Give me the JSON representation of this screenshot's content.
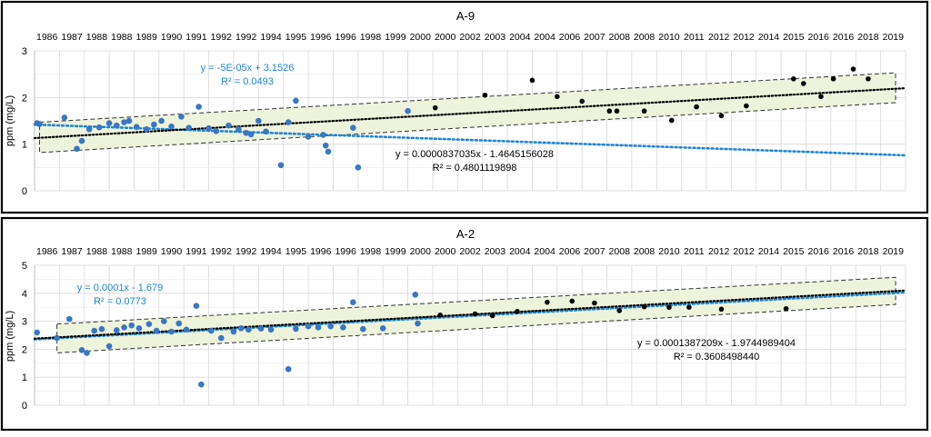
{
  "colors": {
    "blue": "#3a76c3",
    "blue_trend": "#1f86d6",
    "black": "#000000",
    "band_fill": "#eef4dc",
    "grid": "#d9d9d9",
    "frame": "#000000"
  },
  "chart_data": [
    {
      "type": "scatter",
      "title": "A-9",
      "ylabel": "ppm (mg/L)",
      "xlabel": "",
      "ylim": [
        0,
        3
      ],
      "yticks": [
        "0",
        "1",
        "2",
        "3"
      ],
      "x_tick_labels": [
        "1986",
        "1987",
        "1988",
        "1988",
        "1989",
        "1990",
        "1991",
        "1992",
        "1992",
        "1994",
        "1995",
        "1996",
        "1996",
        "1998",
        "1999",
        "2000",
        "2000",
        "2002",
        "2003",
        "2004",
        "2004",
        "2006",
        "2007",
        "2008",
        "2008",
        "2010",
        "2011",
        "2012",
        "2012",
        "2014",
        "2015",
        "2016",
        "2016",
        "2018",
        "2019"
      ],
      "x_domain": [
        0,
        35
      ],
      "grid": true,
      "series": [
        {
          "name": "",
          "color": "#3a76c3",
          "points": [
            [
              0.1,
              1.45
            ],
            [
              0.2,
              1.43
            ],
            [
              1.2,
              1.57
            ],
            [
              1.7,
              0.9
            ],
            [
              1.9,
              1.07
            ],
            [
              2.2,
              1.32
            ],
            [
              2.6,
              1.36
            ],
            [
              3.0,
              1.45
            ],
            [
              3.3,
              1.4
            ],
            [
              3.6,
              1.47
            ],
            [
              3.8,
              1.5
            ],
            [
              4.1,
              1.37
            ],
            [
              4.5,
              1.32
            ],
            [
              4.8,
              1.42
            ],
            [
              5.1,
              1.5
            ],
            [
              5.5,
              1.38
            ],
            [
              5.9,
              1.59
            ],
            [
              6.2,
              1.35
            ],
            [
              6.6,
              1.8
            ],
            [
              7.0,
              1.34
            ],
            [
              7.3,
              1.28
            ],
            [
              7.8,
              1.4
            ],
            [
              8.2,
              1.32
            ],
            [
              8.5,
              1.24
            ],
            [
              8.7,
              1.21
            ],
            [
              9.0,
              1.5
            ],
            [
              9.3,
              1.27
            ],
            [
              9.9,
              0.55
            ],
            [
              10.2,
              1.47
            ],
            [
              10.5,
              1.93
            ],
            [
              11.0,
              1.16
            ],
            [
              11.6,
              1.2
            ],
            [
              11.7,
              0.97
            ],
            [
              11.8,
              0.84
            ],
            [
              12.8,
              1.35
            ],
            [
              13.0,
              0.5
            ],
            [
              15.0,
              1.71
            ]
          ]
        },
        {
          "name": "",
          "color": "#000000",
          "points": [
            [
              16.1,
              1.78
            ],
            [
              18.1,
              2.05
            ],
            [
              20.0,
              2.37
            ],
            [
              21.0,
              2.02
            ],
            [
              22.0,
              1.92
            ],
            [
              23.1,
              1.71
            ],
            [
              23.4,
              1.71
            ],
            [
              24.5,
              1.71
            ],
            [
              25.6,
              1.51
            ],
            [
              26.6,
              1.8
            ],
            [
              27.6,
              1.61
            ],
            [
              28.6,
              1.82
            ],
            [
              30.5,
              2.4
            ],
            [
              30.9,
              2.3
            ],
            [
              31.6,
              2.02
            ],
            [
              32.1,
              2.4
            ],
            [
              32.9,
              2.61
            ],
            [
              33.5,
              2.4
            ]
          ]
        }
      ],
      "trendlines": [
        {
          "color": "#1f86d6",
          "x": [
            0,
            35
          ],
          "y": [
            1.42,
            0.76
          ],
          "equation": "y = -5E-05x + 3.1526",
          "r2": "R² = 0.0493"
        },
        {
          "color": "#000000",
          "x": [
            0,
            35
          ],
          "y": [
            1.13,
            2.2
          ],
          "equation": "y = 0.0000837035x - 1.4645156028",
          "r2": "R² = 0.4801119898"
        }
      ],
      "band": {
        "x": [
          0.2,
          34.6
        ],
        "lower": [
          0.82,
          1.89
        ],
        "upper": [
          1.47,
          2.53
        ]
      }
    },
    {
      "type": "scatter",
      "title": "A-2",
      "ylabel": "ppm (mg/L)",
      "xlabel": "",
      "ylim": [
        0,
        5
      ],
      "yticks": [
        "0",
        "1",
        "2",
        "3",
        "4",
        "5"
      ],
      "x_tick_labels": [
        "1986",
        "1987",
        "1988",
        "1988",
        "1989",
        "1990",
        "1991",
        "1992",
        "1992",
        "1994",
        "1995",
        "1996",
        "1996",
        "1998",
        "1999",
        "2000",
        "2000",
        "2002",
        "2003",
        "2004",
        "2004",
        "2006",
        "2007",
        "2008",
        "2008",
        "2010",
        "2011",
        "2012",
        "2012",
        "2014",
        "2015",
        "2016",
        "2016",
        "2018",
        "2019"
      ],
      "x_domain": [
        0,
        35
      ],
      "grid": true,
      "series": [
        {
          "name": "",
          "color": "#3a76c3",
          "points": [
            [
              0.1,
              2.6
            ],
            [
              0.9,
              2.4
            ],
            [
              1.4,
              3.08
            ],
            [
              1.9,
              1.97
            ],
            [
              2.1,
              1.87
            ],
            [
              2.4,
              2.66
            ],
            [
              2.7,
              2.72
            ],
            [
              3.0,
              2.11
            ],
            [
              3.3,
              2.68
            ],
            [
              3.6,
              2.78
            ],
            [
              3.9,
              2.85
            ],
            [
              4.2,
              2.75
            ],
            [
              4.6,
              2.9
            ],
            [
              4.9,
              2.66
            ],
            [
              5.2,
              3.0
            ],
            [
              5.5,
              2.63
            ],
            [
              5.8,
              2.92
            ],
            [
              6.1,
              2.7
            ],
            [
              6.5,
              3.55
            ],
            [
              6.7,
              0.74
            ],
            [
              7.1,
              2.66
            ],
            [
              7.5,
              2.4
            ],
            [
              8.0,
              2.63
            ],
            [
              8.3,
              2.75
            ],
            [
              8.6,
              2.7
            ],
            [
              9.1,
              2.74
            ],
            [
              9.5,
              2.7
            ],
            [
              10.2,
              1.29
            ],
            [
              10.5,
              2.73
            ],
            [
              11.0,
              2.82
            ],
            [
              11.4,
              2.78
            ],
            [
              11.9,
              2.82
            ],
            [
              12.4,
              2.78
            ],
            [
              12.8,
              3.68
            ],
            [
              13.2,
              2.72
            ],
            [
              14.0,
              2.75
            ],
            [
              15.3,
              3.95
            ],
            [
              15.4,
              2.92
            ]
          ]
        },
        {
          "name": "",
          "color": "#000000",
          "points": [
            [
              16.3,
              3.22
            ],
            [
              17.7,
              3.26
            ],
            [
              18.4,
              3.2
            ],
            [
              19.4,
              3.35
            ],
            [
              20.6,
              3.68
            ],
            [
              21.6,
              3.72
            ],
            [
              22.5,
              3.65
            ],
            [
              23.5,
              3.38
            ],
            [
              24.5,
              3.52
            ],
            [
              25.5,
              3.5
            ],
            [
              26.3,
              3.5
            ],
            [
              27.6,
              3.43
            ],
            [
              30.2,
              3.45
            ]
          ]
        }
      ],
      "trendlines": [
        {
          "color": "#1f86d6",
          "x": [
            0,
            35
          ],
          "y": [
            2.35,
            4.03
          ],
          "equation": "y = 0.0001x - 1.679",
          "r2": "R² = 0.0773"
        },
        {
          "color": "#000000",
          "x": [
            0,
            35
          ],
          "y": [
            2.38,
            4.1
          ],
          "equation": "y = 0.0001387209x - 1.9744989404",
          "r2": "R² = 0.3608498440"
        }
      ],
      "band": {
        "x": [
          0.9,
          34.6
        ],
        "lower": [
          1.87,
          3.6
        ],
        "upper": [
          2.9,
          4.57
        ]
      }
    }
  ]
}
